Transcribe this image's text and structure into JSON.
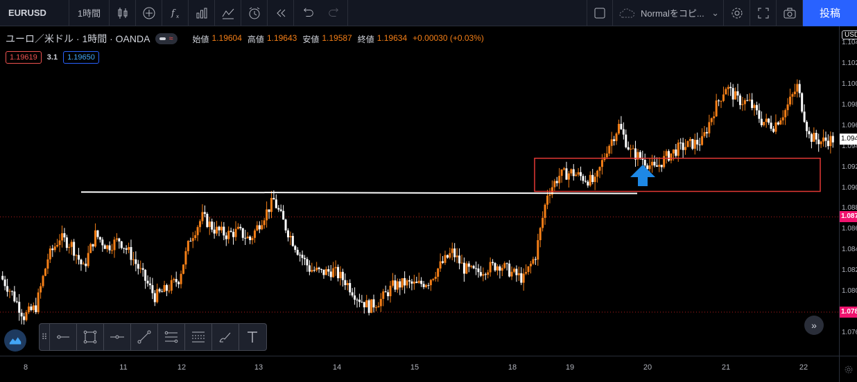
{
  "toolbar": {
    "symbol": "EURUSD",
    "interval": "1時間",
    "template_label": "Normalをコピ...",
    "publish_label": "投稿",
    "icons": [
      "candles-icon",
      "plus-circle-icon",
      "fx-icon",
      "bars-icon",
      "compare-icon",
      "alert-clock-icon",
      "replay-icon",
      "undo-icon",
      "redo-icon",
      "checkbox-icon",
      "cloud-icon",
      "settings-icon",
      "fullscreen-icon",
      "camera-icon"
    ]
  },
  "legend": {
    "title": "ユーロ／米ドル · 1時間 · OANDA",
    "open_label": "始値",
    "open": "1.19604",
    "high_label": "高値",
    "high": "1.19643",
    "low_label": "安値",
    "low": "1.19587",
    "close_label": "終値",
    "close": "1.19634",
    "change": "+0.00030 (+0.03%)",
    "bid": "1.19619",
    "spread": "3.1",
    "ask": "1.19650"
  },
  "price_axis": {
    "currency": "USD",
    "ticks": [
      "1.104",
      "1.102",
      "1.100",
      "1.098",
      "1.096",
      "1.094",
      "1.092",
      "1.090",
      "1.088",
      "1.086",
      "1.084",
      "1.082",
      "1.080",
      "1.078",
      "1.076"
    ],
    "current_price": "1.094",
    "badge_upper": "1.087",
    "badge_lower": "1.078"
  },
  "time_axis": {
    "labels": [
      "8",
      "11",
      "12",
      "13",
      "14",
      "15",
      "18",
      "19",
      "20",
      "21",
      "22"
    ]
  },
  "colors": {
    "up": "#f57f17",
    "down": "#ffffff",
    "accent": "#2962ff",
    "zone": "#e53935",
    "arrow": "#1e88e5",
    "badge": "#f0136e"
  },
  "chart_data": {
    "type": "candlestick",
    "symbol": "EURUSD",
    "timeframe": "1H",
    "ylim": [
      1.075,
      1.105
    ],
    "x": [
      "8",
      "11",
      "12",
      "13",
      "14",
      "15",
      "18",
      "19",
      "20",
      "21",
      "22"
    ],
    "price_path": [
      1.0815,
      1.0798,
      1.0776,
      1.0785,
      1.0832,
      1.0852,
      1.0845,
      1.0822,
      1.0855,
      1.0843,
      1.085,
      1.0835,
      1.0815,
      1.0795,
      1.0802,
      1.0812,
      1.0852,
      1.0872,
      1.086,
      1.0855,
      1.0858,
      1.085,
      1.087,
      1.0888,
      1.0862,
      1.084,
      1.0822,
      1.0818,
      1.082,
      1.081,
      1.0795,
      1.0785,
      1.0792,
      1.0805,
      1.0808,
      1.0806,
      1.081,
      1.0825,
      1.0838,
      1.0822,
      1.0818,
      1.0823,
      1.0826,
      1.0818,
      1.0812,
      1.0835,
      1.0895,
      1.0912,
      1.0915,
      1.091,
      1.0905,
      1.0938,
      1.096,
      1.0935,
      1.0928,
      1.0918,
      1.093,
      1.0938,
      1.0942,
      1.0945,
      1.0975,
      1.0998,
      1.0985,
      1.0982,
      1.0965,
      1.096,
      1.0975,
      1.0998,
      1.095,
      1.0945,
      1.0947
    ],
    "resistance_level": 1.0896,
    "zone": [
      1.09,
      1.0928
    ],
    "horizontal_levels": [
      1.0872,
      1.078
    ]
  }
}
